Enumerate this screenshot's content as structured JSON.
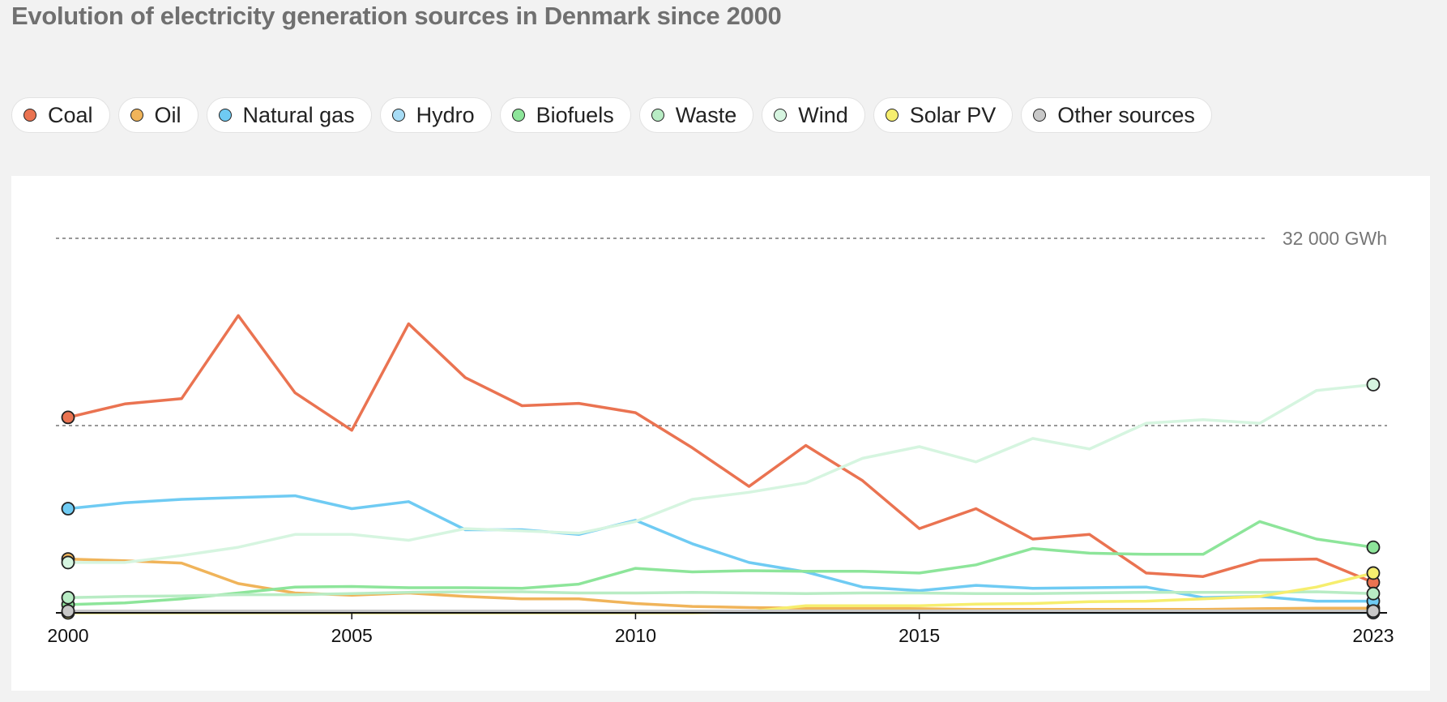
{
  "title": "Evolution of electricity generation sources in Denmark since 2000",
  "legend": [
    {
      "label": "Coal",
      "color": "#ea7351"
    },
    {
      "label": "Oil",
      "color": "#f0b45a"
    },
    {
      "label": "Natural gas",
      "color": "#6fcbf3"
    },
    {
      "label": "Hydro",
      "color": "#a7dcf5"
    },
    {
      "label": "Biofuels",
      "color": "#8de59a"
    },
    {
      "label": "Waste",
      "color": "#b8ecc4"
    },
    {
      "label": "Wind",
      "color": "#d6f5e0"
    },
    {
      "label": "Solar PV",
      "color": "#f6ee6e"
    },
    {
      "label": "Other sources",
      "color": "#c8c8c8"
    }
  ],
  "chart_data": {
    "type": "line",
    "x": [
      2000,
      2001,
      2002,
      2003,
      2004,
      2005,
      2006,
      2007,
      2008,
      2009,
      2010,
      2011,
      2012,
      2013,
      2014,
      2015,
      2016,
      2017,
      2018,
      2019,
      2020,
      2021,
      2022,
      2023
    ],
    "xticks": [
      2000,
      2005,
      2010,
      2015,
      2023
    ],
    "xtick_labels": [
      "2000",
      "2005",
      "2010",
      "2015",
      "2023"
    ],
    "ylim": [
      0,
      32000
    ],
    "gridlines": [
      16000,
      32000
    ],
    "ytick_label": "32 000 GWh",
    "series": [
      {
        "name": "Coal",
        "color": "#ea7351",
        "values": [
          16700,
          17850,
          18300,
          25400,
          18800,
          15600,
          24700,
          20100,
          17700,
          17900,
          17100,
          14100,
          10800,
          14300,
          11300,
          7200,
          8900,
          6300,
          6700,
          3400,
          3100,
          4500,
          4600,
          2600
        ]
      },
      {
        "name": "Oil",
        "color": "#f0b45a",
        "values": [
          4600,
          4450,
          4250,
          2500,
          1700,
          1500,
          1700,
          1400,
          1200,
          1200,
          800,
          550,
          450,
          400,
          400,
          350,
          300,
          300,
          300,
          300,
          300,
          350,
          400,
          400
        ]
      },
      {
        "name": "Natural gas",
        "color": "#6fcbf3",
        "values": [
          8900,
          9400,
          9700,
          9850,
          10000,
          8900,
          9500,
          7100,
          7100,
          6700,
          7900,
          5900,
          4300,
          3500,
          2200,
          1900,
          2350,
          2100,
          2150,
          2200,
          1300,
          1400,
          1000,
          1000
        ]
      },
      {
        "name": "Hydro",
        "color": "#a7dcf5",
        "values": [
          30,
          30,
          30,
          30,
          30,
          30,
          30,
          30,
          30,
          30,
          20,
          20,
          20,
          20,
          20,
          20,
          20,
          20,
          20,
          20,
          20,
          20,
          20,
          20
        ]
      },
      {
        "name": "Biofuels",
        "color": "#8de59a",
        "values": [
          700,
          850,
          1200,
          1700,
          2200,
          2250,
          2150,
          2150,
          2100,
          2450,
          3800,
          3500,
          3600,
          3550,
          3550,
          3400,
          4100,
          5500,
          5100,
          5000,
          5000,
          7800,
          6300,
          5600
        ]
      },
      {
        "name": "Waste",
        "color": "#b8ecc4",
        "values": [
          1300,
          1400,
          1450,
          1550,
          1550,
          1650,
          1750,
          1800,
          1800,
          1700,
          1700,
          1750,
          1700,
          1650,
          1700,
          1700,
          1650,
          1650,
          1700,
          1750,
          1750,
          1750,
          1800,
          1650
        ]
      },
      {
        "name": "Wind",
        "color": "#d6f5e0",
        "values": [
          4300,
          4300,
          4900,
          5600,
          6700,
          6700,
          6200,
          7200,
          7000,
          6800,
          7800,
          9700,
          10300,
          11100,
          13200,
          14200,
          12900,
          14900,
          14000,
          16200,
          16500,
          16200,
          19000,
          19500
        ]
      },
      {
        "name": "Solar PV",
        "color": "#f6ee6e",
        "values": [
          0,
          0,
          0,
          0,
          0,
          0,
          0,
          0,
          0,
          0,
          0,
          0,
          100,
          600,
          600,
          600,
          750,
          800,
          950,
          1000,
          1200,
          1400,
          2200,
          3400
        ]
      },
      {
        "name": "Other sources",
        "color": "#c8c8c8",
        "values": [
          150,
          150,
          150,
          150,
          150,
          150,
          150,
          150,
          150,
          150,
          150,
          150,
          150,
          150,
          150,
          150,
          150,
          150,
          150,
          150,
          150,
          150,
          150,
          150
        ]
      }
    ]
  }
}
